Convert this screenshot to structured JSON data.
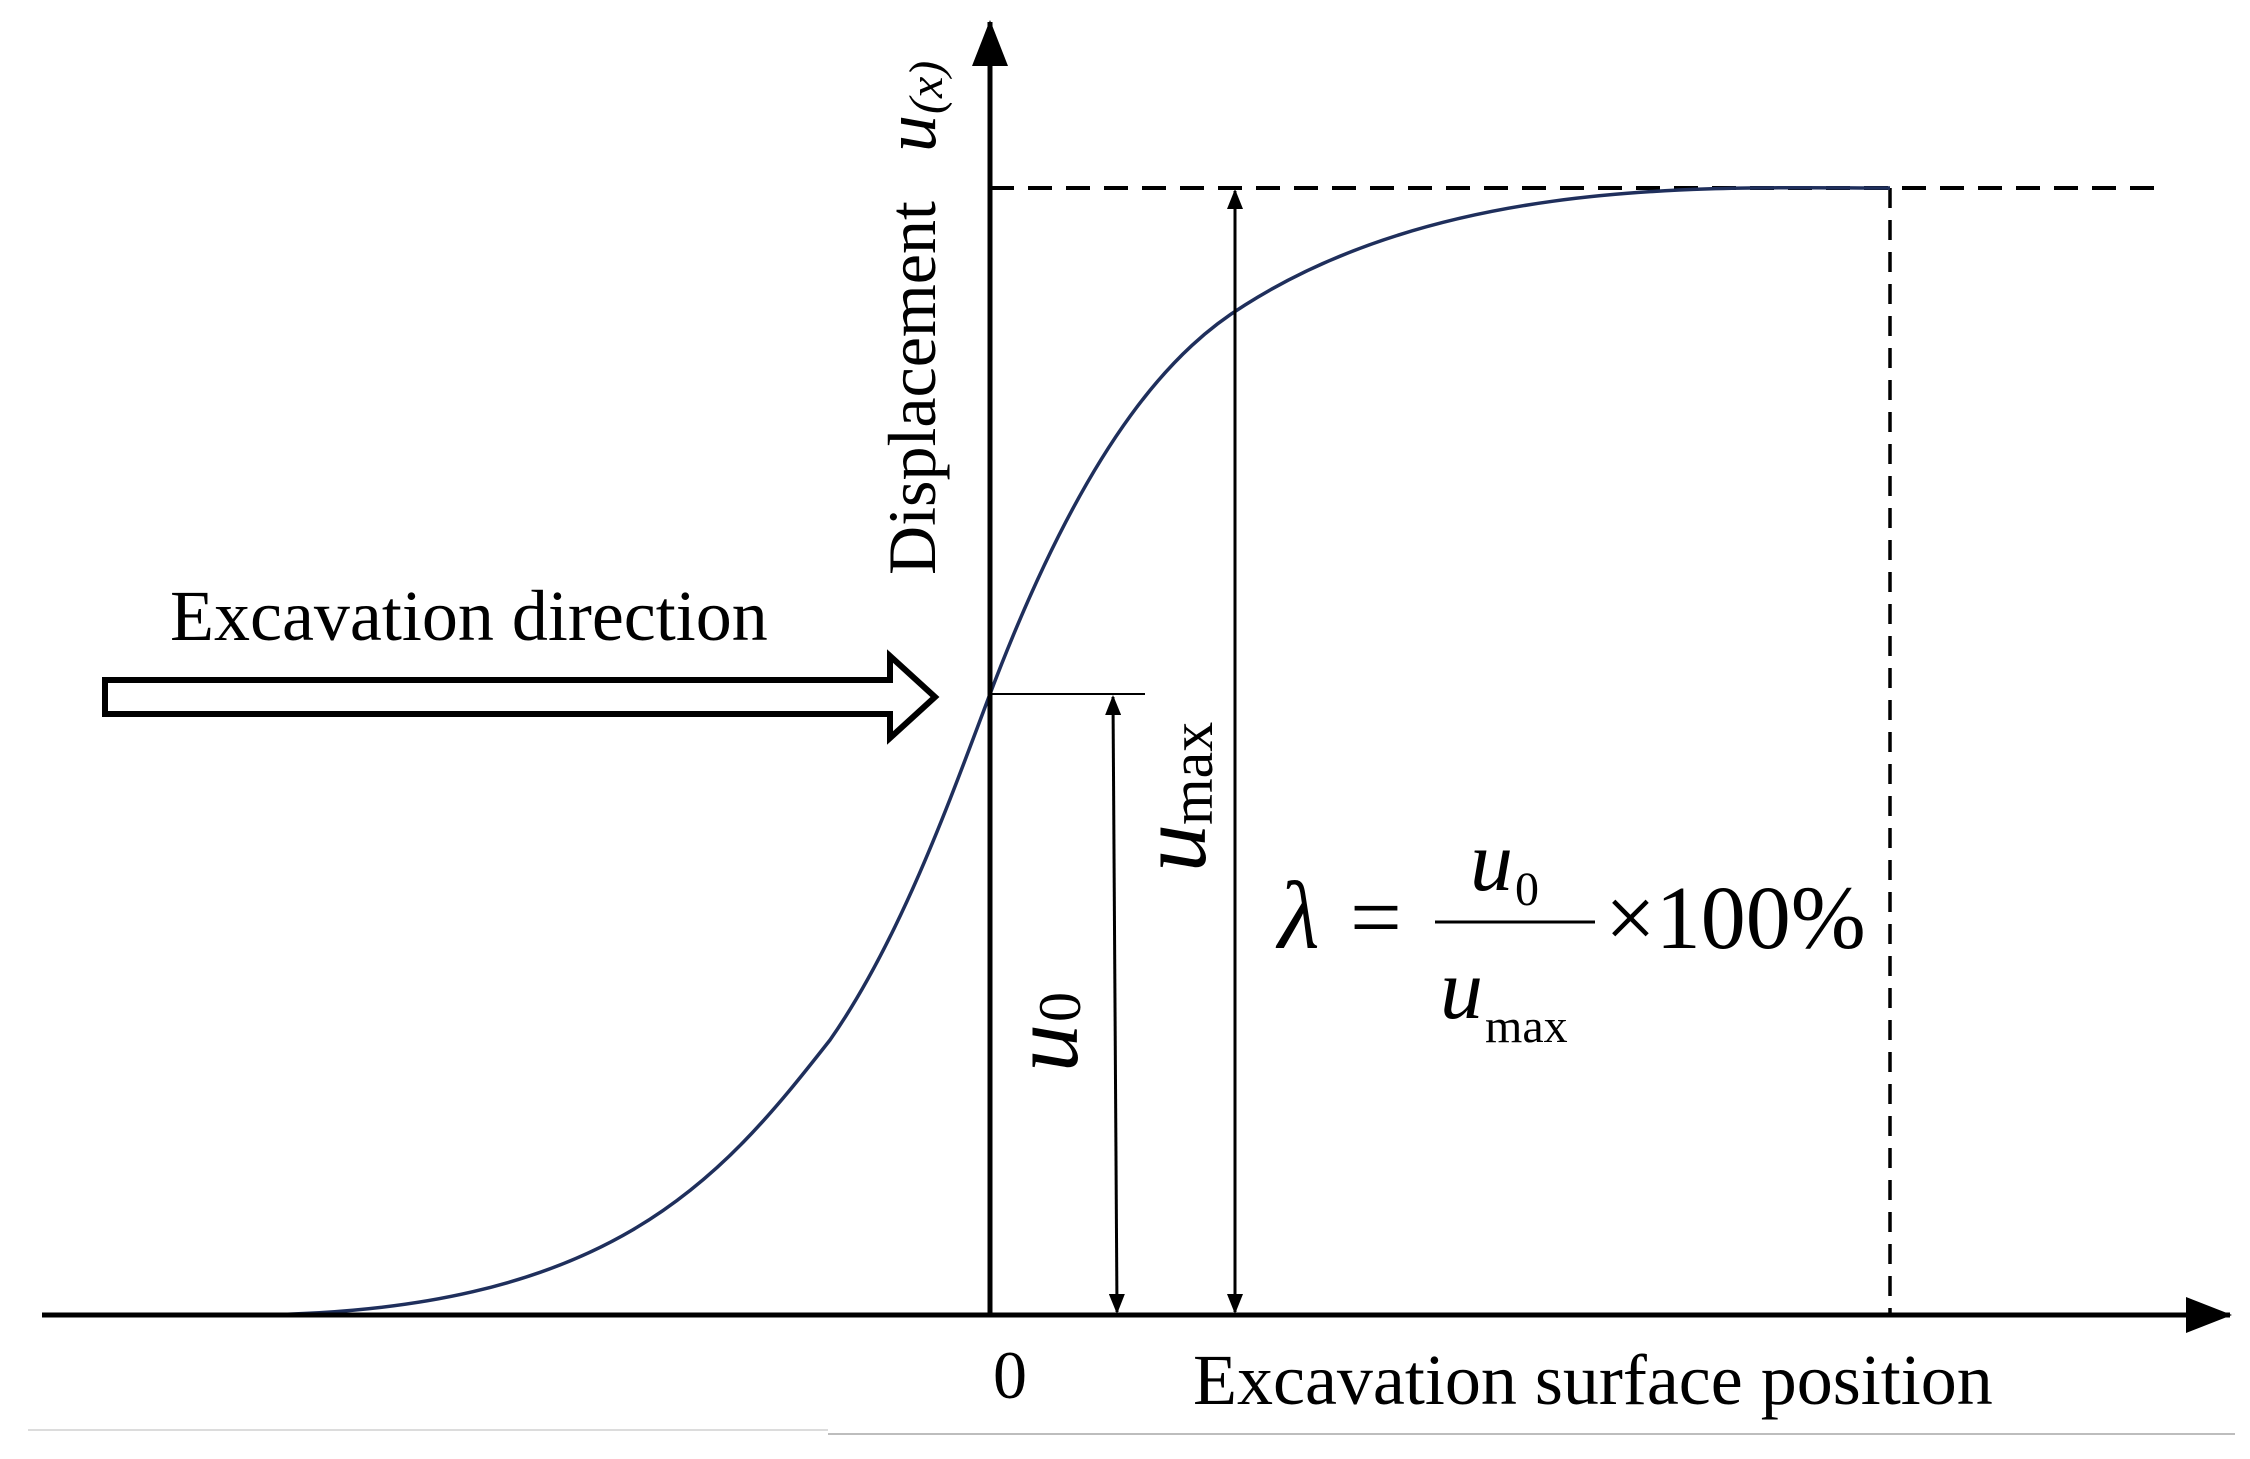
{
  "diagram": {
    "y_axis": {
      "label": "Displacement",
      "symbol": "u",
      "symbol_sub": "(x)"
    },
    "x_axis": {
      "label": "Excavation surface position",
      "origin_label": "0"
    },
    "excavation_arrow": {
      "label": "Excavation direction"
    },
    "u0_label": {
      "symbol": "u",
      "sub": "0"
    },
    "umax_label": {
      "symbol": "u",
      "sub": "max"
    },
    "formula": {
      "lambda": "λ",
      "equals": "=",
      "numerator_symbol": "u",
      "numerator_sub": "0",
      "denominator_symbol": "u",
      "denominator_sub": "max",
      "times": "×100%"
    },
    "colors": {
      "curve": "#1f2f5c",
      "axes": "#000000",
      "background": "#ffffff",
      "footer_line": "#d9d9d9"
    }
  }
}
